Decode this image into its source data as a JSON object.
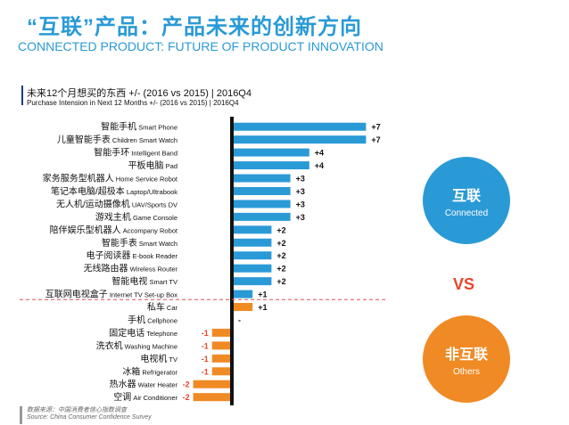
{
  "header": {
    "title_cn": "“互联”产品：产品未来的创新方向",
    "title_en": "CONNECTED PRODUCT: FUTURE OF PRODUCT INNOVATION"
  },
  "chart_data": {
    "type": "bar",
    "orientation": "horizontal",
    "title": "未来12个月想买的东西 +/- (2016 vs 2015) | 2016Q4",
    "subtitle": "Purchase Intension in Next 12 Months +/- (2016 vs 2015) | 2016Q4",
    "categories": [
      {
        "cn": "智能手机",
        "en": "Smart Phone"
      },
      {
        "cn": "儿童智能手表",
        "en": "Children Smart Watch"
      },
      {
        "cn": "智能手环",
        "en": "Intelligent Band"
      },
      {
        "cn": "平板电脑",
        "en": "Pad"
      },
      {
        "cn": "家务服务型机器人",
        "en": "Home Service Robot"
      },
      {
        "cn": "笔记本电脑/超极本",
        "en": "Laptop/Ultrabook"
      },
      {
        "cn": "无人机/运动摄像机",
        "en": "UAV/Sports DV"
      },
      {
        "cn": "游戏主机",
        "en": "Game Console"
      },
      {
        "cn": "陪伴娱乐型机器人",
        "en": "Accompany Robot"
      },
      {
        "cn": "智能手表",
        "en": "Smart Watch"
      },
      {
        "cn": "电子阅读器",
        "en": "E-book Reader"
      },
      {
        "cn": "无线路由器",
        "en": "Wireless Router"
      },
      {
        "cn": "智能电视",
        "en": "Smart TV"
      },
      {
        "cn": "互联网电视盒子",
        "en": "Internet TV Set-up Box"
      },
      {
        "cn": "私车",
        "en": "Car"
      },
      {
        "cn": "手机",
        "en": "Cellphone"
      },
      {
        "cn": "固定电话",
        "en": "Telephone"
      },
      {
        "cn": "洗衣机",
        "en": "Washing Machine"
      },
      {
        "cn": "电视机",
        "en": "TV"
      },
      {
        "cn": "冰箱",
        "en": "Refrigerator"
      },
      {
        "cn": "热水器",
        "en": "Water Heater"
      },
      {
        "cn": "空调",
        "en": "Air Conditioner"
      }
    ],
    "values": [
      7,
      7,
      4,
      4,
      3,
      3,
      3,
      3,
      2,
      2,
      2,
      2,
      2,
      1,
      1,
      0,
      -1,
      -1,
      -1,
      -1,
      -2,
      -2
    ],
    "value_labels": [
      "+7",
      "+7",
      "+4",
      "+4",
      "+3",
      "+3",
      "+3",
      "+3",
      "+2",
      "+2",
      "+2",
      "+2",
      "+2",
      "+1",
      "+1",
      "-",
      "-1",
      "-1",
      "-1",
      "-1",
      "-2",
      "-2"
    ],
    "groups": [
      {
        "name": "互联",
        "name_en": "Connected",
        "count": 14,
        "color": "#2a9ad6"
      },
      {
        "name": "非互联",
        "name_en": "Others",
        "count": 8,
        "color": "#f08a24"
      }
    ],
    "colors": {
      "positive_connected": "#2a9ad6",
      "positive_other": "#f08a24",
      "negative": "#f08a24",
      "neg_label": "#e8452c",
      "axis": "#111111",
      "divider": "#e05050"
    }
  },
  "legend": {
    "connected_cn": "互联",
    "connected_en": "Connected",
    "vs": "VS",
    "others_cn": "非互联",
    "others_en": "Others"
  },
  "source": {
    "cn": "数据来源：中国消费者信心指数调查",
    "en": "Source: China Consumer Confidence Survey"
  }
}
